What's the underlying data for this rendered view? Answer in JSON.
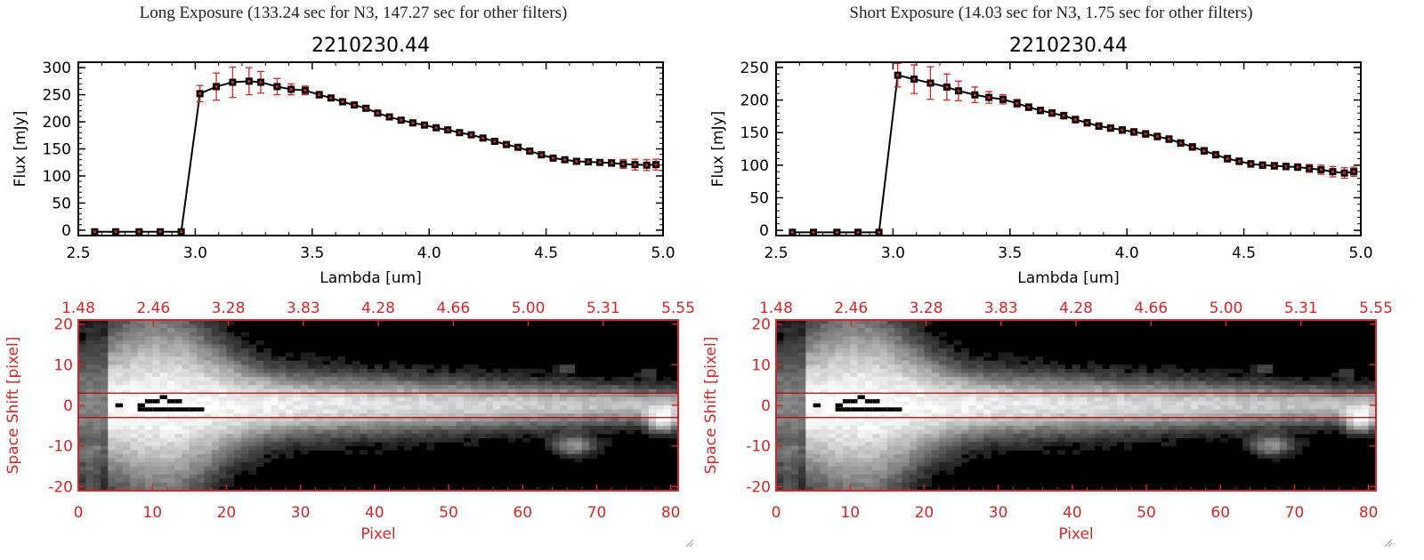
{
  "panels": [
    {
      "caption": "Long Exposure (133.24 sec for N3, 147.27 sec for other filters)"
    },
    {
      "caption": "Short Exposure (14.03 sec for N3, 1.75 sec for other filters)"
    }
  ],
  "chart_data": [
    {
      "type": "line",
      "title": "2210230.44",
      "xlabel": "Lambda [um]",
      "ylabel": "Flux [mJy]",
      "xlim": [
        2.5,
        5.0
      ],
      "ylim": [
        -10,
        310
      ],
      "xticks": [
        "2.5",
        "3.0",
        "3.5",
        "4.0",
        "4.5",
        "5.0"
      ],
      "yticks": [
        "0",
        "50",
        "100",
        "150",
        "200",
        "250",
        "300"
      ],
      "series": [
        {
          "x": [
            2.57,
            2.66,
            2.76,
            2.85,
            2.94,
            3.02,
            3.09,
            3.16,
            3.23,
            3.28,
            3.35,
            3.41,
            3.47,
            3.53,
            3.58,
            3.63,
            3.68,
            3.73,
            3.78,
            3.83,
            3.88,
            3.93,
            3.98,
            4.03,
            4.08,
            4.13,
            4.18,
            4.23,
            4.28,
            4.33,
            4.38,
            4.43,
            4.48,
            4.53,
            4.58,
            4.63,
            4.68,
            4.73,
            4.78,
            4.83,
            4.88,
            4.93,
            4.97
          ],
          "y": [
            -3,
            -3,
            -3,
            -3,
            -3,
            252,
            265,
            273,
            275,
            273,
            265,
            260,
            258,
            250,
            244,
            237,
            231,
            225,
            216,
            209,
            203,
            198,
            194,
            189,
            185,
            180,
            176,
            170,
            164,
            158,
            153,
            146,
            139,
            133,
            130,
            127,
            126,
            125,
            124,
            122,
            121,
            120,
            121
          ],
          "err": [
            0,
            0,
            0,
            0,
            0,
            15,
            25,
            28,
            25,
            20,
            15,
            10,
            8,
            6,
            5,
            5,
            5,
            5,
            5,
            5,
            5,
            5,
            5,
            5,
            5,
            5,
            5,
            5,
            5,
            5,
            5,
            5,
            5,
            5,
            5,
            5,
            5,
            5,
            6,
            8,
            10,
            10,
            10
          ]
        }
      ]
    },
    {
      "type": "heatmap",
      "xlabel": "Pixel",
      "ylabel": "Space Shift [pixel]",
      "xlim": [
        0,
        81
      ],
      "ylim": [
        -21,
        21
      ],
      "xticks": [
        "0",
        "10",
        "20",
        "30",
        "40",
        "50",
        "60",
        "70",
        "80"
      ],
      "yticks": [
        "-20",
        "-10",
        "0",
        "10",
        "20"
      ],
      "top_xticks": [
        "1.48",
        "2.46",
        "3.28",
        "3.83",
        "4.28",
        "4.66",
        "5.00",
        "5.31",
        "5.55"
      ],
      "aperture_lines": [
        3,
        -3
      ]
    },
    {
      "type": "line",
      "title": "2210230.44",
      "xlabel": "Lambda [um]",
      "ylabel": "Flux [mJy]",
      "xlim": [
        2.5,
        5.0
      ],
      "ylim": [
        -8,
        258
      ],
      "xticks": [
        "2.5",
        "3.0",
        "3.5",
        "4.0",
        "4.5",
        "5.0"
      ],
      "yticks": [
        "0",
        "50",
        "100",
        "150",
        "200",
        "250"
      ],
      "series": [
        {
          "x": [
            2.57,
            2.66,
            2.76,
            2.85,
            2.94,
            3.02,
            3.09,
            3.16,
            3.23,
            3.28,
            3.35,
            3.41,
            3.47,
            3.53,
            3.58,
            3.63,
            3.68,
            3.73,
            3.78,
            3.83,
            3.88,
            3.93,
            3.98,
            4.03,
            4.08,
            4.13,
            4.18,
            4.23,
            4.28,
            4.33,
            4.38,
            4.43,
            4.48,
            4.53,
            4.58,
            4.63,
            4.68,
            4.73,
            4.78,
            4.83,
            4.88,
            4.93,
            4.97
          ],
          "y": [
            -3,
            -3,
            -3,
            -3,
            -3,
            238,
            232,
            226,
            220,
            214,
            208,
            204,
            201,
            195,
            189,
            184,
            180,
            176,
            170,
            165,
            160,
            157,
            154,
            151,
            148,
            144,
            140,
            134,
            128,
            122,
            116,
            110,
            106,
            102,
            100,
            99,
            98,
            97,
            95,
            93,
            90,
            88,
            90
          ],
          "err": [
            0,
            0,
            0,
            0,
            0,
            18,
            22,
            25,
            20,
            15,
            12,
            9,
            7,
            6,
            5,
            5,
            5,
            5,
            5,
            5,
            5,
            5,
            5,
            5,
            5,
            5,
            5,
            5,
            5,
            5,
            5,
            5,
            5,
            5,
            5,
            5,
            5,
            5,
            6,
            7,
            8,
            8,
            7
          ]
        }
      ]
    },
    {
      "type": "heatmap",
      "xlabel": "Pixel",
      "ylabel": "Space Shift [pixel]",
      "xlim": [
        0,
        81
      ],
      "ylim": [
        -21,
        21
      ],
      "xticks": [
        "0",
        "10",
        "20",
        "30",
        "40",
        "50",
        "60",
        "70",
        "80"
      ],
      "yticks": [
        "-20",
        "-10",
        "0",
        "10",
        "20"
      ],
      "top_xticks": [
        "1.48",
        "2.46",
        "3.28",
        "3.83",
        "4.28",
        "4.66",
        "5.00",
        "5.31",
        "5.55"
      ],
      "aperture_lines": [
        3,
        -3
      ]
    }
  ]
}
